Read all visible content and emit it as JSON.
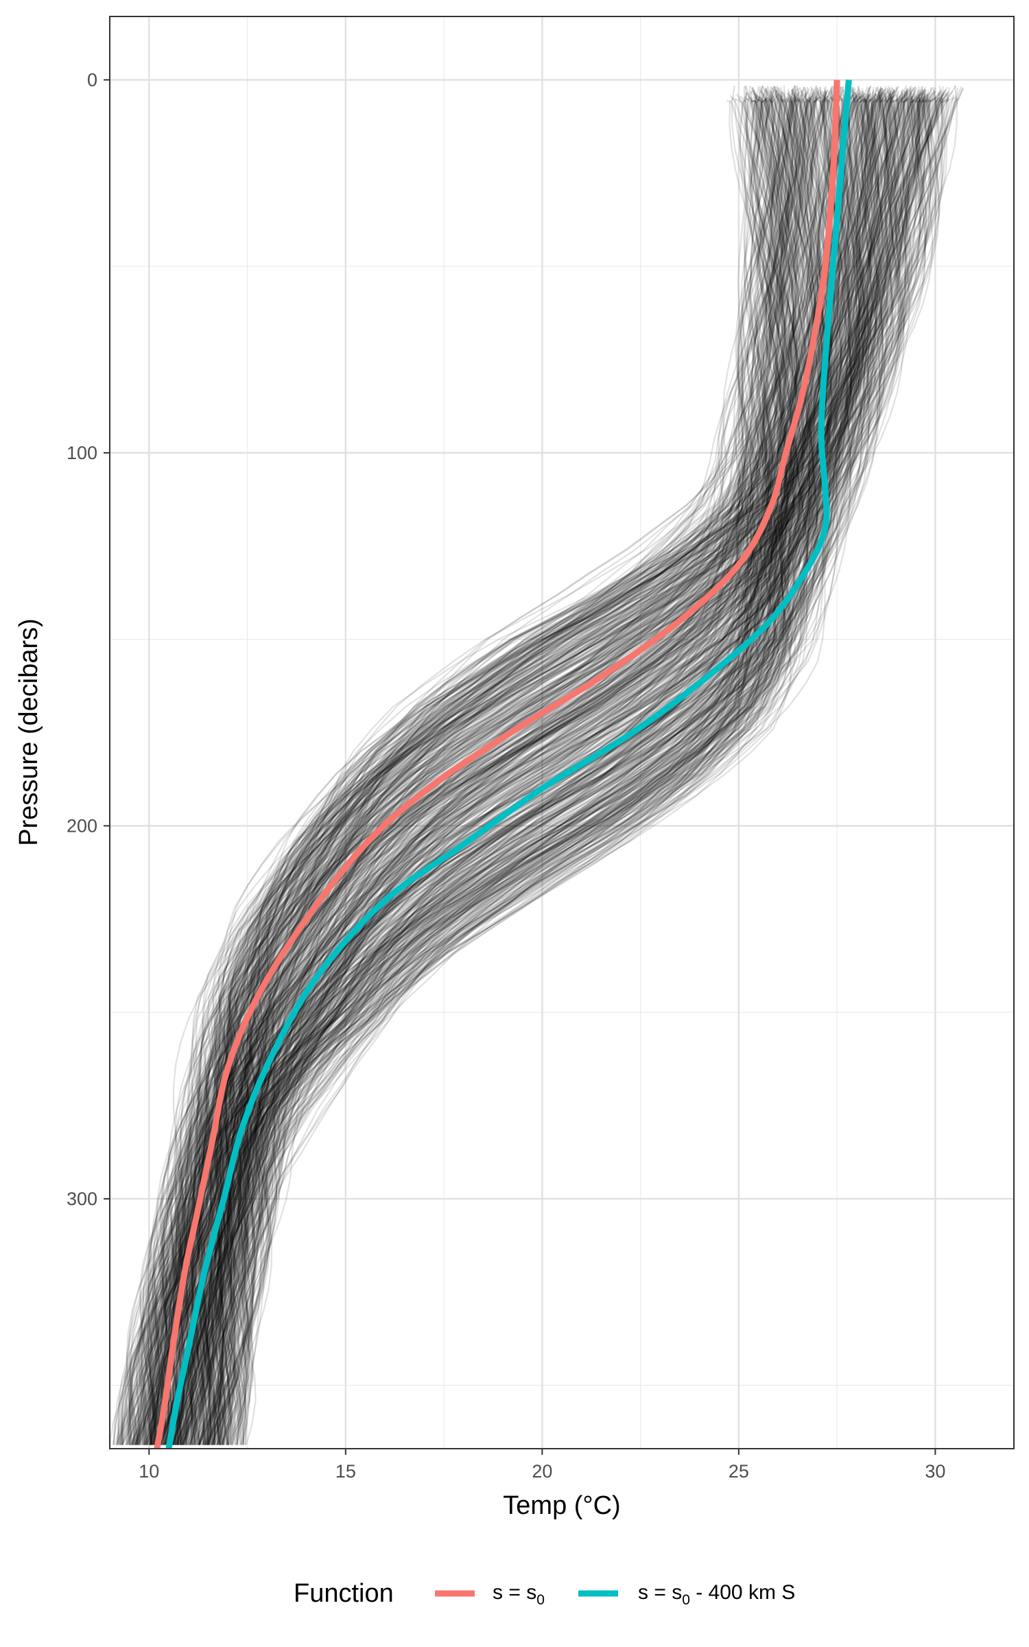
{
  "chart_data": {
    "type": "line",
    "xlabel": "Temp (°C)",
    "ylabel": "Pressure (decibars)",
    "xlim": [
      9,
      32
    ],
    "ylim": [
      367,
      -17
    ],
    "y_reversed": true,
    "x_ticks": [
      "10",
      "15",
      "20",
      "25",
      "30"
    ],
    "y_ticks": [
      "0",
      "100",
      "200",
      "300"
    ],
    "grid": true,
    "background_profiles": {
      "description_color": "#000000",
      "opacity": 0.12,
      "count_shown": "many"
    },
    "legend": {
      "title": "Function",
      "position": "bottom",
      "entries": [
        {
          "label_main": "s = s",
          "label_sub": "0",
          "label_tail": "",
          "color": "#F8766D"
        },
        {
          "label_main": "s = s",
          "label_sub": "0",
          "label_tail": " - 400 km S",
          "color": "#00BFC4"
        }
      ]
    },
    "series": [
      {
        "color": "#F8766D",
        "x": [
          27.5,
          27.4,
          27.2,
          26.9,
          26.6,
          26.2,
          25.8,
          25.0,
          23.5,
          21.5,
          19.2,
          17.1,
          15.5,
          14.0,
          12.8,
          12.0,
          11.6,
          11.2,
          10.9,
          10.6,
          10.4,
          10.2
        ],
        "y": [
          0,
          25,
          50,
          70,
          85,
          100,
          115,
          130,
          145,
          160,
          175,
          190,
          205,
          225,
          245,
          265,
          285,
          305,
          320,
          340,
          355,
          367
        ]
      },
      {
        "color": "#00BFC4",
        "x": [
          27.8,
          27.6,
          27.4,
          27.2,
          27.1,
          27.2,
          27.2,
          26.8,
          25.8,
          24.2,
          22.3,
          20.0,
          18.0,
          16.0,
          14.3,
          13.2,
          12.4,
          11.9,
          11.4,
          11.0,
          10.7,
          10.5
        ],
        "y": [
          0,
          25,
          50,
          75,
          95,
          110,
          120,
          130,
          145,
          160,
          175,
          190,
          205,
          220,
          240,
          260,
          280,
          300,
          320,
          340,
          355,
          367
        ]
      }
    ]
  }
}
